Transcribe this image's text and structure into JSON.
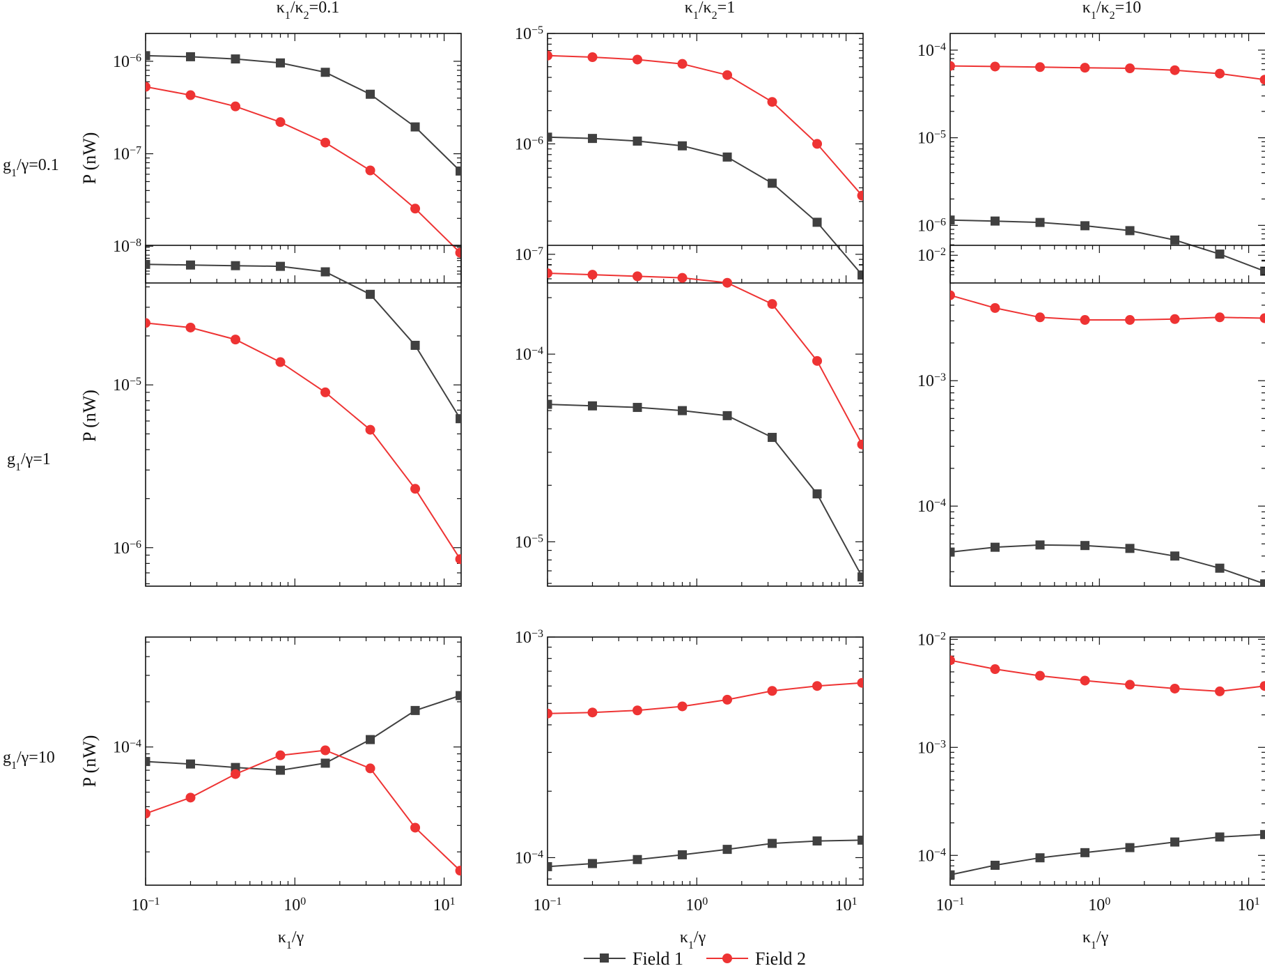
{
  "colors": {
    "field1": "#404040",
    "field2": "#ee3333",
    "axis": "#111111"
  },
  "figure": {
    "col_headers": [
      {
        "base": "κ",
        "sub1": "1",
        "mid": "/κ",
        "sub2": "2",
        "tail": "=0.1"
      },
      {
        "base": "κ",
        "sub1": "1",
        "mid": "/κ",
        "sub2": "2",
        "tail": "=1"
      },
      {
        "base": "κ",
        "sub1": "1",
        "mid": "/κ",
        "sub2": "2",
        "tail": "=10"
      }
    ],
    "row_headers": [
      {
        "base": "g",
        "sub": "1",
        "tail": "/γ=0.1"
      },
      {
        "base": "g",
        "sub": "1",
        "tail": "/γ=1"
      },
      {
        "base": "g",
        "sub": "1",
        "tail": "/γ=10"
      }
    ],
    "ylabel": "P (nW)",
    "xlabel": {
      "base": "κ",
      "sub": "1",
      "tail": "/γ"
    },
    "legend": [
      "Field 1",
      "Field 2"
    ]
  },
  "chart_data": [
    {
      "type": "line",
      "row": 0,
      "col": 0,
      "xscale": "log",
      "yscale": "log",
      "xlim": [
        0.1,
        13
      ],
      "ylim": [
        4e-09,
        2e-06
      ],
      "x": [
        0.1,
        0.2,
        0.4,
        0.8,
        1.6,
        3.2,
        6.4,
        12.8
      ],
      "series": [
        {
          "name": "Field 1",
          "values": [
            1.15e-06,
            1.12e-06,
            1.06e-06,
            9.6e-07,
            7.6e-07,
            4.4e-07,
            1.95e-07,
            6.5e-08
          ]
        },
        {
          "name": "Field 2",
          "values": [
            5.3e-07,
            4.3e-07,
            3.25e-07,
            2.2e-07,
            1.32e-07,
            6.6e-08,
            2.55e-08,
            8.5e-09
          ]
        }
      ],
      "ylabel": "P (nW)",
      "xlabel": "",
      "ytick_exps": [
        -6,
        -7,
        -8
      ],
      "xtick_exps": []
    },
    {
      "type": "line",
      "row": 0,
      "col": 1,
      "xscale": "log",
      "yscale": "log",
      "xlim": [
        0.1,
        13
      ],
      "ylim": [
        5.5e-08,
        1e-05
      ],
      "x": [
        0.1,
        0.2,
        0.4,
        0.8,
        1.6,
        3.2,
        6.4,
        12.8
      ],
      "series": [
        {
          "name": "Field 1",
          "values": [
            1.15e-06,
            1.12e-06,
            1.06e-06,
            9.6e-07,
            7.6e-07,
            4.4e-07,
            1.95e-07,
            6.5e-08
          ]
        },
        {
          "name": "Field 2",
          "values": [
            6.3e-06,
            6.1e-06,
            5.8e-06,
            5.3e-06,
            4.2e-06,
            2.4e-06,
            1e-06,
            3.4e-07
          ]
        }
      ],
      "ylabel": "",
      "xlabel": "",
      "ytick_exps": [
        -5,
        -6,
        -7
      ],
      "xtick_exps": []
    },
    {
      "type": "line",
      "row": 0,
      "col": 2,
      "xscale": "log",
      "yscale": "log",
      "xlim": [
        0.1,
        13
      ],
      "ylim": [
        2.2e-07,
        0.000155
      ],
      "x": [
        0.1,
        0.2,
        0.4,
        0.8,
        1.6,
        3.2,
        6.4,
        12.8
      ],
      "series": [
        {
          "name": "Field 1",
          "values": [
            1.15e-06,
            1.12e-06,
            1.08e-06,
            9.9e-07,
            8.7e-07,
            6.8e-07,
            4.7e-07,
            3e-07
          ]
        },
        {
          "name": "Field 2",
          "values": [
            6.6e-05,
            6.5e-05,
            6.4e-05,
            6.3e-05,
            6.2e-05,
            5.9e-05,
            5.4e-05,
            4.6e-05
          ]
        }
      ],
      "ylabel": "",
      "xlabel": "",
      "ytick_exps": [
        -4,
        -5,
        -6
      ],
      "xtick_exps": []
    },
    {
      "type": "line",
      "row": 1,
      "col": 0,
      "xscale": "log",
      "yscale": "log",
      "xlim": [
        0.1,
        13
      ],
      "ylim": [
        5.8e-07,
        7.2e-05
      ],
      "x": [
        0.1,
        0.2,
        0.4,
        0.8,
        1.6,
        3.2,
        6.4,
        12.8
      ],
      "series": [
        {
          "name": "Field 1",
          "values": [
            5.5e-05,
            5.45e-05,
            5.4e-05,
            5.35e-05,
            4.95e-05,
            3.6e-05,
            1.75e-05,
            6.2e-06
          ]
        },
        {
          "name": "Field 2",
          "values": [
            2.4e-05,
            2.25e-05,
            1.9e-05,
            1.38e-05,
            9e-06,
            5.3e-06,
            2.3e-06,
            8.5e-07
          ]
        }
      ],
      "ylabel": "P (nW)",
      "xlabel": "",
      "ytick_exps": [
        -5,
        -6
      ],
      "xtick_exps": []
    },
    {
      "type": "line",
      "row": 1,
      "col": 1,
      "xscale": "log",
      "yscale": "log",
      "xlim": [
        0.1,
        13
      ],
      "ylim": [
        5.8e-06,
        0.00038
      ],
      "x": [
        0.1,
        0.2,
        0.4,
        0.8,
        1.6,
        3.2,
        6.4,
        12.8
      ],
      "series": [
        {
          "name": "Field 1",
          "values": [
            5.4e-05,
            5.3e-05,
            5.2e-05,
            5e-05,
            4.7e-05,
            3.6e-05,
            1.8e-05,
            6.5e-06
          ]
        },
        {
          "name": "Field 2",
          "values": [
            0.00027,
            0.000265,
            0.00026,
            0.000255,
            0.00024,
            0.000185,
            9.2e-05,
            3.3e-05
          ]
        }
      ],
      "ylabel": "",
      "xlabel": "",
      "ytick_exps": [
        -4,
        -5
      ],
      "xtick_exps": []
    },
    {
      "type": "line",
      "row": 1,
      "col": 2,
      "xscale": "log",
      "yscale": "log",
      "xlim": [
        0.1,
        13
      ],
      "ylim": [
        2.3e-05,
        0.012
      ],
      "x": [
        0.1,
        0.2,
        0.4,
        0.8,
        1.6,
        3.2,
        6.4,
        12.8
      ],
      "series": [
        {
          "name": "Field 1",
          "values": [
            4.3e-05,
            4.7e-05,
            4.9e-05,
            4.85e-05,
            4.6e-05,
            4e-05,
            3.2e-05,
            2.4e-05
          ]
        },
        {
          "name": "Field 2",
          "values": [
            0.0048,
            0.0038,
            0.0032,
            0.00305,
            0.00305,
            0.0031,
            0.0032,
            0.00315
          ]
        }
      ],
      "ylabel": "",
      "xlabel": "",
      "ytick_exps": [
        -2,
        -3,
        -4
      ],
      "xtick_exps": []
    },
    {
      "type": "line",
      "row": 2,
      "col": 0,
      "xscale": "log",
      "yscale": "log",
      "xlim": [
        0.1,
        13
      ],
      "ylim": [
        1.2e-05,
        0.00054
      ],
      "x": [
        0.1,
        0.2,
        0.4,
        0.8,
        1.6,
        3.2,
        6.4,
        12.8
      ],
      "series": [
        {
          "name": "Field 1",
          "values": [
            8e-05,
            7.7e-05,
            7.3e-05,
            7e-05,
            7.8e-05,
            0.000112,
            0.000175,
            0.00022
          ]
        },
        {
          "name": "Field 2",
          "values": [
            3.6e-05,
            4.6e-05,
            6.6e-05,
            8.8e-05,
            9.5e-05,
            7.2e-05,
            2.9e-05,
            1.5e-05
          ]
        }
      ],
      "ylabel": "P (nW)",
      "xlabel": "κ1/γ",
      "ytick_exps": [
        -4
      ],
      "xtick_exps": [
        -1,
        0,
        1
      ]
    },
    {
      "type": "line",
      "row": 2,
      "col": 1,
      "xscale": "log",
      "yscale": "log",
      "xlim": [
        0.1,
        13
      ],
      "ylim": [
        7.5e-05,
        0.001
      ],
      "x": [
        0.1,
        0.2,
        0.4,
        0.8,
        1.6,
        3.2,
        6.4,
        12.8
      ],
      "series": [
        {
          "name": "Field 1",
          "values": [
            9.1e-05,
            9.4e-05,
            9.8e-05,
            0.000103,
            0.000109,
            0.000116,
            0.000119,
            0.00012
          ]
        },
        {
          "name": "Field 2",
          "values": [
            0.00045,
            0.000455,
            0.000465,
            0.000485,
            0.00052,
            0.00057,
            0.0006,
            0.00062
          ]
        }
      ],
      "ylabel": "",
      "xlabel": "κ1/γ",
      "ytick_exps": [
        -3,
        -4
      ],
      "xtick_exps": [
        -1,
        0,
        1
      ]
    },
    {
      "type": "line",
      "row": 2,
      "col": 2,
      "xscale": "log",
      "yscale": "log",
      "xlim": [
        0.1,
        13
      ],
      "ylim": [
        5.3e-05,
        0.0105
      ],
      "x": [
        0.1,
        0.2,
        0.4,
        0.8,
        1.6,
        3.2,
        6.4,
        12.8
      ],
      "series": [
        {
          "name": "Field 1",
          "values": [
            6.6e-05,
            8.1e-05,
            9.5e-05,
            0.000106,
            0.000118,
            0.000133,
            0.000148,
            0.000156
          ]
        },
        {
          "name": "Field 2",
          "values": [
            0.0064,
            0.0053,
            0.0046,
            0.00415,
            0.0038,
            0.0035,
            0.0033,
            0.0037
          ]
        }
      ],
      "ylabel": "",
      "xlabel": "κ1/γ",
      "ytick_exps": [
        -2,
        -3,
        -4
      ],
      "xtick_exps": [
        -1,
        0,
        1
      ]
    }
  ]
}
